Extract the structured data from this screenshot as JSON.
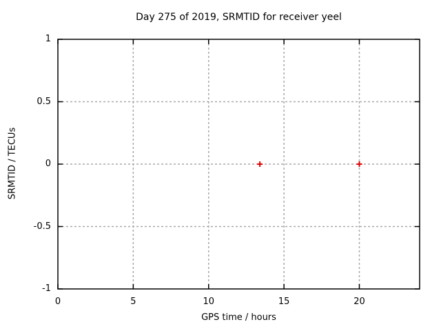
{
  "title": "Day 275 of 2019, SRMTID for receiver yeel",
  "chart_data": {
    "type": "scatter",
    "title": "Day 275 of 2019, SRMTID for receiver yeel",
    "xlabel": "GPS time / hours",
    "ylabel": "SRMTID / TECUs",
    "xlim": [
      0,
      24
    ],
    "ylim": [
      -1,
      1
    ],
    "x_ticks": [
      0,
      5,
      10,
      15,
      20
    ],
    "y_ticks": [
      1,
      0.5,
      0,
      -0.5,
      -1
    ],
    "grid": true,
    "legend_position": "none",
    "series": [
      {
        "name": "SRMTID",
        "marker": "plus",
        "color": "#e00000",
        "points": [
          {
            "x": 13.4,
            "y": 0.0
          },
          {
            "x": 20.0,
            "y": 0.0
          }
        ]
      }
    ]
  },
  "colors": {
    "background": "#ffffff",
    "border": "#000000",
    "grid": "#a8a8a8",
    "text": "#000000",
    "marker": "#e00000"
  }
}
